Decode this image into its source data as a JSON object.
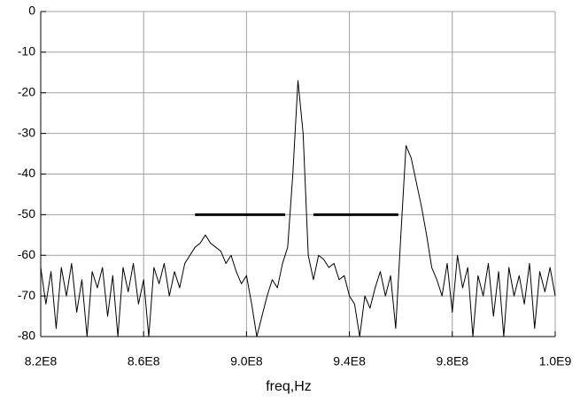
{
  "chart_data": {
    "type": "line",
    "x_label": "freq,Hz",
    "xlim": [
      820000000.0,
      1020000000.0
    ],
    "xticks": [
      {
        "value": 820000000.0,
        "label": "8.2E8"
      },
      {
        "value": 860000000.0,
        "label": "8.6E8"
      },
      {
        "value": 900000000.0,
        "label": "9.0E8"
      },
      {
        "value": 940000000.0,
        "label": "9.4E8"
      },
      {
        "value": 980000000.0,
        "label": "9.8E8"
      },
      {
        "value": 1020000000.0,
        "label": "1.0E9"
      }
    ],
    "ylim": [
      -80,
      0
    ],
    "yticks": [
      -80,
      -70,
      -60,
      -50,
      -40,
      -30,
      -20,
      -10,
      0
    ],
    "grid": true,
    "series": [
      {
        "color": "#000000",
        "x": [
          820000000.0,
          822000000.0,
          824000000.0,
          826000000.0,
          828000000.0,
          830000000.0,
          832000000.0,
          834000000.0,
          836000000.0,
          838000000.0,
          840000000.0,
          842000000.0,
          844000000.0,
          846000000.0,
          848000000.0,
          850000000.0,
          852000000.0,
          854000000.0,
          856000000.0,
          858000000.0,
          860000000.0,
          862000000.0,
          864000000.0,
          866000000.0,
          868000000.0,
          870000000.0,
          872000000.0,
          874000000.0,
          876000000.0,
          878000000.0,
          880000000.0,
          882000000.0,
          884000000.0,
          886000000.0,
          888000000.0,
          890000000.0,
          892000000.0,
          894000000.0,
          896000000.0,
          898000000.0,
          900000000.0,
          902000000.0,
          904000000.0,
          906000000.0,
          908000000.0,
          910000000.0,
          912000000.0,
          914000000.0,
          916000000.0,
          918000000.0,
          920000000.0,
          922000000.0,
          924000000.0,
          926000000.0,
          928000000.0,
          930000000.0,
          932000000.0,
          934000000.0,
          936000000.0,
          938000000.0,
          940000000.0,
          942000000.0,
          944000000.0,
          946000000.0,
          948000000.0,
          950000000.0,
          952000000.0,
          954000000.0,
          956000000.0,
          958000000.0,
          960000000.0,
          962000000.0,
          964000000.0,
          966000000.0,
          968000000.0,
          970000000.0,
          972000000.0,
          974000000.0,
          976000000.0,
          978000000.0,
          980000000.0,
          982000000.0,
          984000000.0,
          986000000.0,
          988000000.0,
          990000000.0,
          992000000.0,
          994000000.0,
          996000000.0,
          998000000.0,
          1000000000.0,
          1002000000.0,
          1004000000.0,
          1006000000.0,
          1008000000.0,
          1010000000.0,
          1012000000.0,
          1014000000.0,
          1016000000.0,
          1018000000.0,
          1020000000.0
        ],
        "values": [
          -63,
          -72,
          -64,
          -78,
          -63,
          -70,
          -62,
          -74,
          -66,
          -80,
          -64,
          -68,
          -63,
          -75,
          -65,
          -80,
          -63,
          -69,
          -62,
          -72,
          -66,
          -80,
          -63,
          -67,
          -62,
          -70,
          -64,
          -68,
          -62,
          -60,
          -58,
          -57,
          -55,
          -57,
          -58,
          -59,
          -62,
          -60,
          -64,
          -67,
          -65,
          -72,
          -80,
          -75,
          -70,
          -66,
          -68,
          -62,
          -58,
          -40,
          -17,
          -30,
          -60,
          -66,
          -60,
          -61,
          -63,
          -62,
          -66,
          -65,
          -70,
          -72,
          -80,
          -70,
          -73,
          -68,
          -64,
          -70,
          -65,
          -78,
          -55,
          -33,
          -36,
          -42,
          -48,
          -55,
          -63,
          -66,
          -70,
          -62,
          -74,
          -60,
          -68,
          -63,
          -80,
          -65,
          -70,
          -62,
          -75,
          -64,
          -80,
          -63,
          -70,
          -65,
          -72,
          -62,
          -78,
          -64,
          -69,
          -63,
          -70
        ]
      },
      {
        "color": "#000000",
        "width": 3,
        "x": [
          880000000.0,
          915000000.0
        ],
        "values": [
          -50,
          -50
        ]
      },
      {
        "color": "#000000",
        "width": 3,
        "x": [
          926000000.0,
          959000000.0
        ],
        "values": [
          -50,
          -50
        ]
      }
    ]
  }
}
